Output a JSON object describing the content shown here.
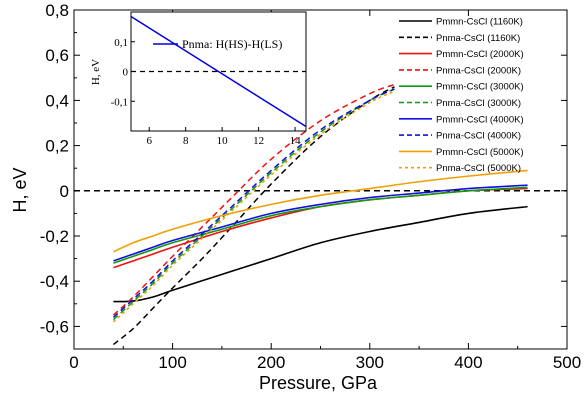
{
  "chart_data": [
    {
      "type": "line",
      "xlabel": "Pressure, GPa",
      "ylabel": "H, eV",
      "xlim": [
        0,
        500
      ],
      "ylim": [
        -0.7,
        0.8
      ],
      "x_ticks": [
        "0",
        "100",
        "200",
        "300",
        "400",
        "500"
      ],
      "y_ticks": [
        "-0,6",
        "-0,4",
        "-0,2",
        "0",
        "0,2",
        "0,4",
        "0,6",
        "0,8"
      ],
      "y_tick_values": [
        -0.6,
        -0.4,
        -0.2,
        0,
        0.2,
        0.4,
        0.6,
        0.8
      ],
      "reference_line": {
        "y": 0,
        "style": "dashed",
        "color": "#000000"
      },
      "legend_position": "top-right",
      "series": [
        {
          "name": "Pmmn-CsCl (1160K)",
          "color": "#000000",
          "dash": "solid",
          "x": [
            40,
            60,
            80,
            100,
            150,
            200,
            250,
            300,
            350,
            400,
            460
          ],
          "y": [
            -0.49,
            -0.488,
            -0.47,
            -0.44,
            -0.37,
            -0.3,
            -0.23,
            -0.18,
            -0.14,
            -0.1,
            -0.07
          ]
        },
        {
          "name": "Pnma-CsCl (1160K)",
          "color": "#000000",
          "dash": "dashed",
          "x": [
            40,
            60,
            80,
            100,
            130,
            160,
            200,
            250,
            300,
            325
          ],
          "y": [
            -0.68,
            -0.61,
            -0.52,
            -0.43,
            -0.3,
            -0.16,
            0.03,
            0.24,
            0.4,
            0.46
          ]
        },
        {
          "name": "Pmmn-CsCl (2000K)",
          "color": "#ee1111",
          "dash": "solid",
          "x": [
            40,
            60,
            80,
            100,
            150,
            200,
            250,
            300,
            350,
            400,
            460
          ],
          "y": [
            -0.34,
            -0.31,
            -0.28,
            -0.25,
            -0.18,
            -0.12,
            -0.07,
            -0.04,
            -0.02,
            0.0,
            0.01
          ]
        },
        {
          "name": "Pnma-CsCl (2000K)",
          "color": "#ee1111",
          "dash": "dashed",
          "x": [
            40,
            60,
            80,
            100,
            130,
            160,
            200,
            250,
            300,
            325
          ],
          "y": [
            -0.55,
            -0.47,
            -0.38,
            -0.29,
            -0.16,
            -0.03,
            0.14,
            0.31,
            0.43,
            0.47
          ]
        },
        {
          "name": "Pmmn-CsCl (3000K)",
          "color": "#119911",
          "dash": "solid",
          "x": [
            40,
            60,
            80,
            100,
            150,
            200,
            250,
            300,
            350,
            400,
            460
          ],
          "y": [
            -0.32,
            -0.29,
            -0.26,
            -0.23,
            -0.17,
            -0.11,
            -0.07,
            -0.04,
            -0.02,
            0.0,
            0.015
          ]
        },
        {
          "name": "Pnma-CsCl (3000K)",
          "color": "#119911",
          "dash": "dashed",
          "x": [
            40,
            60,
            80,
            100,
            130,
            160,
            200,
            250,
            300,
            325
          ],
          "y": [
            -0.57,
            -0.49,
            -0.41,
            -0.32,
            -0.2,
            -0.08,
            0.08,
            0.26,
            0.4,
            0.45
          ]
        },
        {
          "name": "Pmmn-CsCl (4000K)",
          "color": "#1111dd",
          "dash": "solid",
          "x": [
            40,
            60,
            80,
            100,
            150,
            200,
            250,
            300,
            350,
            400,
            460
          ],
          "y": [
            -0.31,
            -0.28,
            -0.25,
            -0.22,
            -0.16,
            -0.1,
            -0.06,
            -0.03,
            -0.01,
            0.01,
            0.025
          ]
        },
        {
          "name": "Pnma-CsCl (4000K)",
          "color": "#1111dd",
          "dash": "dashed",
          "x": [
            40,
            60,
            80,
            100,
            130,
            160,
            200,
            250,
            300,
            325
          ],
          "y": [
            -0.56,
            -0.48,
            -0.4,
            -0.31,
            -0.19,
            -0.07,
            0.09,
            0.27,
            0.4,
            0.45
          ]
        },
        {
          "name": "Pmmn-CsCl (5000K)",
          "color": "#f0a000",
          "dash": "solid",
          "x": [
            40,
            60,
            80,
            100,
            150,
            200,
            250,
            300,
            350,
            400,
            460
          ],
          "y": [
            -0.27,
            -0.23,
            -0.2,
            -0.17,
            -0.11,
            -0.06,
            -0.02,
            0.01,
            0.04,
            0.065,
            0.09
          ]
        },
        {
          "name": "Pnma-CsCl (5000K)",
          "color": "#f0a000",
          "dash": "dashed",
          "x": [
            40,
            60,
            80,
            100,
            130,
            160,
            200,
            250,
            300,
            325
          ],
          "y": [
            -0.58,
            -0.5,
            -0.42,
            -0.33,
            -0.21,
            -0.09,
            0.07,
            0.25,
            0.39,
            0.44
          ]
        }
      ]
    },
    {
      "type": "line",
      "xlabel": "",
      "ylabel": "H, eV",
      "xlim": [
        5,
        14.6
      ],
      "ylim": [
        -0.2,
        0.2
      ],
      "x_ticks": [
        "6",
        "8",
        "10",
        "12",
        "14"
      ],
      "x_tick_values": [
        6,
        8,
        10,
        12,
        14
      ],
      "y_ticks": [
        "0,1",
        "0",
        "-0,1"
      ],
      "y_tick_values": [
        0.1,
        0,
        -0.1
      ],
      "reference_line": {
        "y": 0,
        "style": "dashed",
        "color": "#000000"
      },
      "legend_position": "top-right",
      "series": [
        {
          "name": "Pnma: H(HS)-H(LS)",
          "color": "#0000dd",
          "dash": "solid",
          "x": [
            5,
            14.6
          ],
          "y": [
            0.185,
            -0.185
          ]
        }
      ]
    }
  ]
}
